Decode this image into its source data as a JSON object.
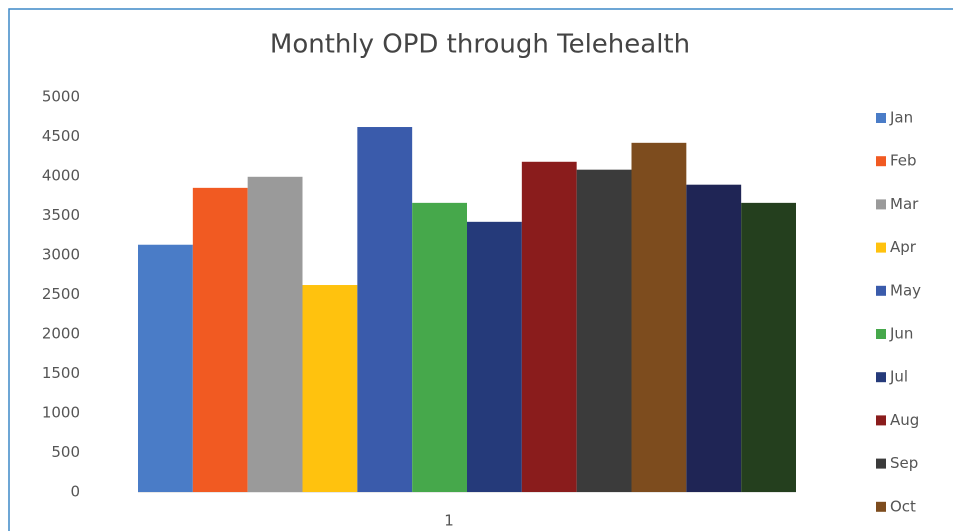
{
  "chart_data": {
    "type": "bar",
    "title": "Monthly OPD through Telehealth",
    "categories": [
      "1"
    ],
    "series": [
      {
        "name": "Jan",
        "color": "#4a7cc7",
        "values": [
          3130
        ]
      },
      {
        "name": "Feb",
        "color": "#f15a22",
        "values": [
          3850
        ]
      },
      {
        "name": "Mar",
        "color": "#9a9a9a",
        "values": [
          3990
        ]
      },
      {
        "name": "Apr",
        "color": "#ffc20e",
        "values": [
          2620
        ]
      },
      {
        "name": "May",
        "color": "#3a5bab",
        "values": [
          4620
        ]
      },
      {
        "name": "Jun",
        "color": "#46a84b",
        "values": [
          3660
        ]
      },
      {
        "name": "Jul",
        "color": "#253a7a",
        "values": [
          3420
        ]
      },
      {
        "name": "Aug",
        "color": "#8a1c1c",
        "values": [
          4180
        ]
      },
      {
        "name": "Sep",
        "color": "#3b3b3b",
        "values": [
          4080
        ]
      },
      {
        "name": "Oct",
        "color": "#7d4c1e",
        "values": [
          4420
        ]
      },
      {
        "name": null,
        "color": "#1f2555",
        "values": [
          3890
        ]
      },
      {
        "name": null,
        "color": "#243f1e",
        "values": [
          3660
        ]
      }
    ],
    "ylim": [
      0,
      5000
    ],
    "yticks": [
      0,
      500,
      1000,
      1500,
      2000,
      2500,
      3000,
      3500,
      4000,
      4500,
      5000
    ],
    "grid": false,
    "legend": "right"
  }
}
